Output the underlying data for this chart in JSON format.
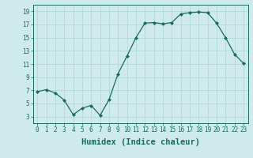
{
  "x": [
    0,
    1,
    2,
    3,
    4,
    5,
    6,
    7,
    8,
    9,
    10,
    11,
    12,
    13,
    14,
    15,
    16,
    17,
    18,
    19,
    20,
    21,
    22,
    23
  ],
  "y": [
    6.8,
    7.1,
    6.6,
    5.5,
    3.3,
    4.3,
    4.7,
    3.2,
    5.6,
    9.5,
    12.2,
    15.0,
    17.2,
    17.3,
    17.1,
    17.3,
    18.6,
    18.8,
    18.9,
    18.8,
    17.2,
    15.0,
    12.5,
    11.1
  ],
  "line_color": "#1a6b5a",
  "marker": "D",
  "marker_size": 2.0,
  "bg_color": "#ceeaea",
  "grid_color": "#b0d8d8",
  "xlabel": "Humidex (Indice chaleur)",
  "xlim": [
    -0.5,
    23.5
  ],
  "ylim": [
    2.0,
    20.0
  ],
  "yticks": [
    3,
    5,
    7,
    9,
    11,
    13,
    15,
    17,
    19
  ],
  "xticks": [
    0,
    1,
    2,
    3,
    4,
    5,
    6,
    7,
    8,
    9,
    10,
    11,
    12,
    13,
    14,
    15,
    16,
    17,
    18,
    19,
    20,
    21,
    22,
    23
  ],
  "tick_color": "#1a6b5a",
  "tick_fontsize": 5.5,
  "xlabel_fontsize": 7.5,
  "xlabel_fontweight": "bold",
  "linewidth": 0.9
}
